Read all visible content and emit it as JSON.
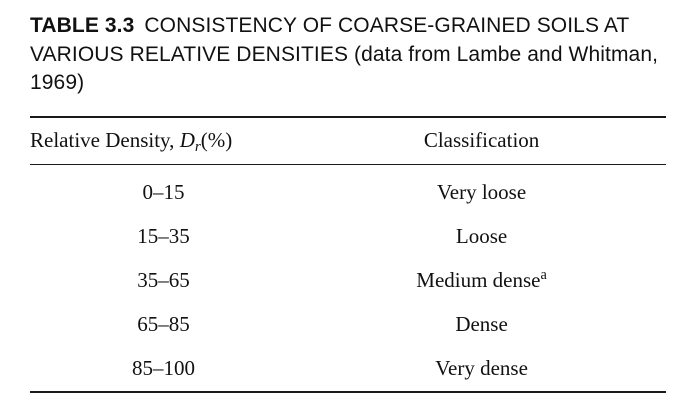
{
  "title": {
    "label": "TABLE 3.3",
    "text": "CONSISTENCY OF COARSE-GRAINED SOILS AT VARIOUS RELATIVE DENSITIES (data from Lambe and Whitman, 1969)"
  },
  "table": {
    "header": {
      "col1_prefix": "Relative Density, ",
      "col1_var": "D",
      "col1_sub": "r",
      "col1_suffix": "(%)",
      "col2": "Classification"
    },
    "rows": [
      {
        "range": "0–15",
        "classification": "Very loose",
        "note": ""
      },
      {
        "range": "15–35",
        "classification": "Loose",
        "note": ""
      },
      {
        "range": "35–65",
        "classification": "Medium dense",
        "note": "a"
      },
      {
        "range": "65–85",
        "classification": "Dense",
        "note": ""
      },
      {
        "range": "85–100",
        "classification": "Very dense",
        "note": ""
      }
    ]
  },
  "chart_data": {
    "type": "table",
    "title": "TABLE 3.3 CONSISTENCY OF COARSE-GRAINED SOILS AT VARIOUS RELATIVE DENSITIES (data from Lambe and Whitman, 1969)",
    "columns": [
      "Relative Density, Dr(%)",
      "Classification"
    ],
    "rows": [
      [
        "0–15",
        "Very loose"
      ],
      [
        "15–35",
        "Loose"
      ],
      [
        "35–65",
        "Medium dense (a)"
      ],
      [
        "65–85",
        "Dense"
      ],
      [
        "85–100",
        "Very dense"
      ]
    ]
  }
}
